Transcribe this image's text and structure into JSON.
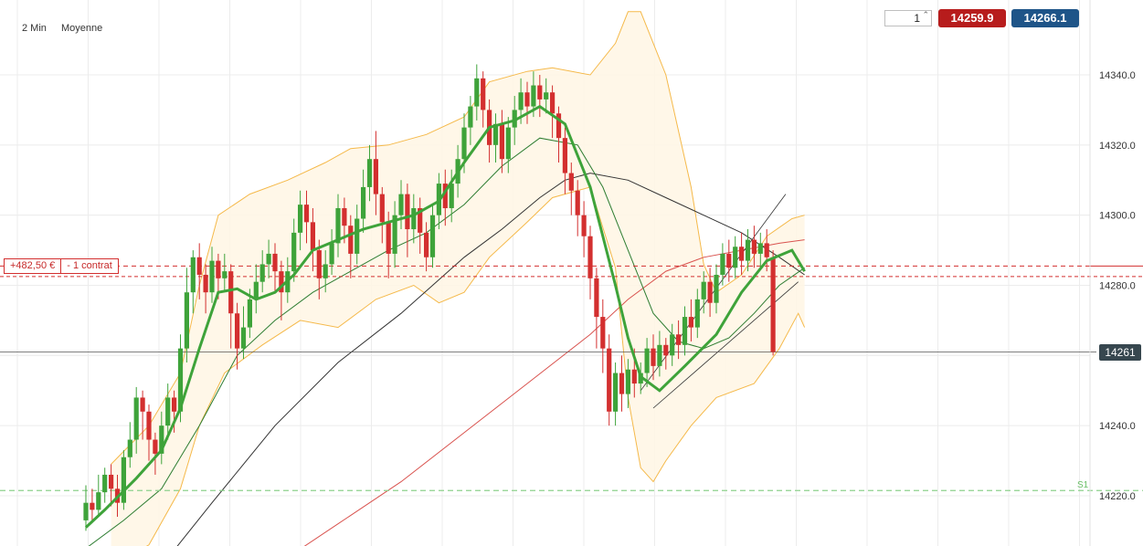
{
  "header": {
    "timeframe": "2 Min",
    "indicator": "Moyenne"
  },
  "trade_panel": {
    "quantity": "1",
    "sell_price": "14259.9",
    "buy_price": "14266.1"
  },
  "position": {
    "pnl": "+482,50 €",
    "size": "- 1 contrat"
  },
  "last_price_label": "14261",
  "support_label": "S1",
  "colors": {
    "bull": "#3ea33a",
    "bear": "#d32f2f",
    "ma_fast": "#3ea33a",
    "ma_slow": "#2e7d32",
    "ma_50": "#333333",
    "ma_200": "#d9534f",
    "bollinger": "#f5b94a",
    "bollinger_fill": "#fff6e6",
    "sell": "#b71c1c",
    "buy": "#1e5488",
    "support": "#8fd18c"
  },
  "chart_data": {
    "type": "candlestick",
    "ylim": [
      14210,
      14355
    ],
    "y_ticks": [
      "14340.0",
      "14320.0",
      "14300.0",
      "14280.0",
      "14240.0",
      "14220.0"
    ],
    "last_price": 14261,
    "entry_price": 14285.5,
    "stop_price": 14282.5,
    "support_price": 14221.5,
    "candles": [
      [
        14213,
        14218,
        14210,
        14223
      ],
      [
        14218,
        14216,
        14213,
        14222
      ],
      [
        14216,
        14221,
        14214,
        14226
      ],
      [
        14221,
        14226,
        14218,
        14228
      ],
      [
        14226,
        14222,
        14217,
        14229
      ],
      [
        14222,
        14218,
        14214,
        14226
      ],
      [
        14218,
        14231,
        14216,
        14233
      ],
      [
        14231,
        14236,
        14228,
        14241
      ],
      [
        14236,
        14248,
        14232,
        14251
      ],
      [
        14248,
        14244,
        14236,
        14250
      ],
      [
        14244,
        14236,
        14230,
        14246
      ],
      [
        14236,
        14232,
        14226,
        14238
      ],
      [
        14232,
        14240,
        14229,
        14244
      ],
      [
        14240,
        14248,
        14236,
        14252
      ],
      [
        14248,
        14244,
        14238,
        14250
      ],
      [
        14244,
        14262,
        14241,
        14266
      ],
      [
        14262,
        14278,
        14258,
        14285
      ],
      [
        14278,
        14288,
        14272,
        14290
      ],
      [
        14288,
        14283,
        14276,
        14292
      ],
      [
        14283,
        14278,
        14272,
        14286
      ],
      [
        14278,
        14287,
        14275,
        14291
      ],
      [
        14287,
        14282,
        14276,
        14289
      ],
      [
        14282,
        14284,
        14278,
        14289
      ],
      [
        14284,
        14272,
        14262,
        14286
      ],
      [
        14272,
        14262,
        14256,
        14275
      ],
      [
        14262,
        14268,
        14259,
        14274
      ],
      [
        14268,
        14276,
        14265,
        14279
      ],
      [
        14276,
        14281,
        14272,
        14286
      ],
      [
        14281,
        14286,
        14278,
        14290
      ],
      [
        14286,
        14289,
        14282,
        14293
      ],
      [
        14289,
        14284,
        14278,
        14292
      ],
      [
        14284,
        14278,
        14270,
        14287
      ],
      [
        14278,
        14284,
        14275,
        14288
      ],
      [
        14284,
        14295,
        14281,
        14299
      ],
      [
        14295,
        14303,
        14290,
        14307
      ],
      [
        14303,
        14298,
        14292,
        14307
      ],
      [
        14298,
        14290,
        14284,
        14302
      ],
      [
        14290,
        14282,
        14276,
        14293
      ],
      [
        14282,
        14286,
        14278,
        14290
      ],
      [
        14286,
        14292,
        14283,
        14296
      ],
      [
        14292,
        14302,
        14288,
        14306
      ],
      [
        14302,
        14297,
        14292,
        14305
      ],
      [
        14297,
        14289,
        14282,
        14300
      ],
      [
        14289,
        14299,
        14286,
        14303
      ],
      [
        14299,
        14308,
        14295,
        14313
      ],
      [
        14308,
        14316,
        14304,
        14320
      ],
      [
        14316,
        14306,
        14300,
        14324
      ],
      [
        14306,
        14298,
        14292,
        14308
      ],
      [
        14298,
        14289,
        14282,
        14301
      ],
      [
        14289,
        14300,
        14285,
        14304
      ],
      [
        14300,
        14306,
        14296,
        14310
      ],
      [
        14306,
        14296,
        14288,
        14309
      ],
      [
        14296,
        14302,
        14292,
        14306
      ],
      [
        14302,
        14295,
        14289,
        14305
      ],
      [
        14295,
        14288,
        14284,
        14298
      ],
      [
        14288,
        14300,
        14285,
        14303
      ],
      [
        14300,
        14309,
        14296,
        14312
      ],
      [
        14309,
        14302,
        14297,
        14313
      ],
      [
        14302,
        14309,
        14298,
        14313
      ],
      [
        14309,
        14316,
        14305,
        14320
      ],
      [
        14316,
        14325,
        14312,
        14329
      ],
      [
        14325,
        14331,
        14320,
        14334
      ],
      [
        14331,
        14339,
        14327,
        14343
      ],
      [
        14339,
        14330,
        14325,
        14341
      ],
      [
        14330,
        14320,
        14315,
        14333
      ],
      [
        14320,
        14326,
        14315,
        14329
      ],
      [
        14326,
        14316,
        14312,
        14330
      ],
      [
        14316,
        14325,
        14312,
        14328
      ],
      [
        14325,
        14330,
        14320,
        14334
      ],
      [
        14330,
        14335,
        14326,
        14339
      ],
      [
        14335,
        14331,
        14326,
        14338
      ],
      [
        14331,
        14337,
        14328,
        14341
      ],
      [
        14337,
        14333,
        14328,
        14340
      ],
      [
        14333,
        14335,
        14329,
        14339
      ],
      [
        14335,
        14329,
        14322,
        14337
      ],
      [
        14329,
        14322,
        14315,
        14331
      ],
      [
        14322,
        14312,
        14306,
        14325
      ],
      [
        14312,
        14307,
        14300,
        14315
      ],
      [
        14307,
        14300,
        14294,
        14310
      ],
      [
        14300,
        14294,
        14288,
        14304
      ],
      [
        14294,
        14282,
        14276,
        14297
      ],
      [
        14282,
        14271,
        14262,
        14285
      ],
      [
        14271,
        14262,
        14255,
        14276
      ],
      [
        14262,
        14244,
        14240,
        14266
      ],
      [
        14244,
        14255,
        14240,
        14258
      ],
      [
        14255,
        14249,
        14244,
        14260
      ],
      [
        14249,
        14256,
        14245,
        14259
      ],
      [
        14256,
        14252,
        14248,
        14262
      ],
      [
        14252,
        14255,
        14249,
        14258
      ],
      [
        14255,
        14262,
        14251,
        14265
      ],
      [
        14262,
        14257,
        14253,
        14266
      ],
      [
        14257,
        14263,
        14254,
        14267
      ],
      [
        14263,
        14260,
        14256,
        14265
      ],
      [
        14260,
        14266,
        14257,
        14269
      ],
      [
        14266,
        14263,
        14259,
        14270
      ],
      [
        14263,
        14271,
        14260,
        14274
      ],
      [
        14271,
        14268,
        14264,
        14276
      ],
      [
        14268,
        14276,
        14265,
        14279
      ],
      [
        14276,
        14281,
        14272,
        14284
      ],
      [
        14281,
        14275,
        14271,
        14285
      ],
      [
        14275,
        14283,
        14272,
        14286
      ],
      [
        14283,
        14289,
        14280,
        14292
      ],
      [
        14289,
        14285,
        14281,
        14293
      ],
      [
        14285,
        14291,
        14282,
        14294
      ],
      [
        14291,
        14287,
        14283,
        14295
      ],
      [
        14287,
        14293,
        14284,
        14296
      ],
      [
        14293,
        14289,
        14285,
        14297
      ],
      [
        14289,
        14292,
        14285,
        14295
      ],
      [
        14292,
        14288,
        14284,
        14296
      ],
      [
        14288,
        14261,
        14260,
        14290
      ]
    ],
    "overlays": {
      "ma_fast": [
        [
          0,
          14211
        ],
        [
          3,
          14216
        ],
        [
          8,
          14225
        ],
        [
          12,
          14233
        ],
        [
          15,
          14245
        ],
        [
          18,
          14262
        ],
        [
          21,
          14278
        ],
        [
          24,
          14279
        ],
        [
          27,
          14276
        ],
        [
          30,
          14278
        ],
        [
          33,
          14283
        ],
        [
          36,
          14290
        ],
        [
          40,
          14293
        ],
        [
          44,
          14296
        ],
        [
          48,
          14298
        ],
        [
          52,
          14300
        ],
        [
          56,
          14304
        ],
        [
          60,
          14315
        ],
        [
          64,
          14325
        ],
        [
          68,
          14327
        ],
        [
          72,
          14331
        ],
        [
          76,
          14326
        ],
        [
          80,
          14308
        ],
        [
          84,
          14280
        ],
        [
          86,
          14265
        ],
        [
          88,
          14254
        ],
        [
          91,
          14250
        ],
        [
          95,
          14257
        ],
        [
          100,
          14266
        ],
        [
          104,
          14278
        ],
        [
          108,
          14287
        ],
        [
          112,
          14290
        ],
        [
          114,
          14284
        ]
      ],
      "ma_slow": [
        [
          0,
          14205
        ],
        [
          6,
          14213
        ],
        [
          12,
          14222
        ],
        [
          18,
          14240
        ],
        [
          24,
          14260
        ],
        [
          30,
          14270
        ],
        [
          36,
          14278
        ],
        [
          42,
          14284
        ],
        [
          48,
          14290
        ],
        [
          54,
          14295
        ],
        [
          60,
          14303
        ],
        [
          66,
          14314
        ],
        [
          72,
          14322
        ],
        [
          78,
          14320
        ],
        [
          82,
          14308
        ],
        [
          86,
          14290
        ],
        [
          90,
          14272
        ],
        [
          94,
          14264
        ],
        [
          98,
          14262
        ],
        [
          102,
          14265
        ],
        [
          106,
          14272
        ],
        [
          110,
          14280
        ],
        [
          114,
          14285
        ]
      ],
      "ma_50": [
        [
          12,
          14200
        ],
        [
          20,
          14218
        ],
        [
          30,
          14240
        ],
        [
          40,
          14258
        ],
        [
          50,
          14272
        ],
        [
          60,
          14288
        ],
        [
          66,
          14296
        ],
        [
          72,
          14305
        ],
        [
          76,
          14310
        ],
        [
          80,
          14312
        ],
        [
          86,
          14310
        ],
        [
          92,
          14305
        ],
        [
          98,
          14300
        ],
        [
          104,
          14295
        ],
        [
          110,
          14288
        ],
        [
          114,
          14283
        ]
      ],
      "ma_200": [
        [
          30,
          14200
        ],
        [
          40,
          14212
        ],
        [
          50,
          14224
        ],
        [
          60,
          14238
        ],
        [
          70,
          14252
        ],
        [
          80,
          14266
        ],
        [
          86,
          14276
        ],
        [
          92,
          14284
        ],
        [
          98,
          14288
        ],
        [
          104,
          14290
        ],
        [
          110,
          14292
        ],
        [
          114,
          14293
        ]
      ],
      "bollinger_upper": [
        [
          4,
          14229
        ],
        [
          10,
          14240
        ],
        [
          15,
          14255
        ],
        [
          18,
          14280
        ],
        [
          21,
          14300
        ],
        [
          26,
          14306
        ],
        [
          32,
          14310
        ],
        [
          38,
          14315
        ],
        [
          42,
          14319
        ],
        [
          48,
          14320
        ],
        [
          54,
          14323
        ],
        [
          60,
          14328
        ],
        [
          64,
          14338
        ],
        [
          70,
          14341
        ],
        [
          74,
          14342
        ],
        [
          80,
          14340
        ],
        [
          84,
          14349
        ],
        [
          86,
          14358
        ],
        [
          88,
          14358
        ],
        [
          92,
          14340
        ],
        [
          96,
          14308
        ],
        [
          98,
          14286
        ],
        [
          100,
          14278
        ],
        [
          104,
          14283
        ],
        [
          108,
          14294
        ],
        [
          112,
          14299
        ],
        [
          114,
          14300
        ]
      ],
      "bollinger_lower": [
        [
          4,
          14200
        ],
        [
          10,
          14206
        ],
        [
          15,
          14222
        ],
        [
          18,
          14240
        ],
        [
          22,
          14255
        ],
        [
          28,
          14263
        ],
        [
          34,
          14270
        ],
        [
          40,
          14268
        ],
        [
          46,
          14276
        ],
        [
          52,
          14280
        ],
        [
          56,
          14275
        ],
        [
          60,
          14278
        ],
        [
          64,
          14288
        ],
        [
          70,
          14298
        ],
        [
          74,
          14305
        ],
        [
          80,
          14308
        ],
        [
          84,
          14285
        ],
        [
          86,
          14248
        ],
        [
          88,
          14228
        ],
        [
          90,
          14224
        ],
        [
          92,
          14230
        ],
        [
          96,
          14240
        ],
        [
          100,
          14248
        ],
        [
          106,
          14252
        ],
        [
          110,
          14262
        ],
        [
          113,
          14272
        ],
        [
          114,
          14268
        ]
      ],
      "channel_upper": [
        [
          88,
          14250
        ],
        [
          111,
          14306
        ]
      ],
      "channel_lower": [
        [
          90,
          14245
        ],
        [
          113,
          14281
        ]
      ]
    }
  }
}
